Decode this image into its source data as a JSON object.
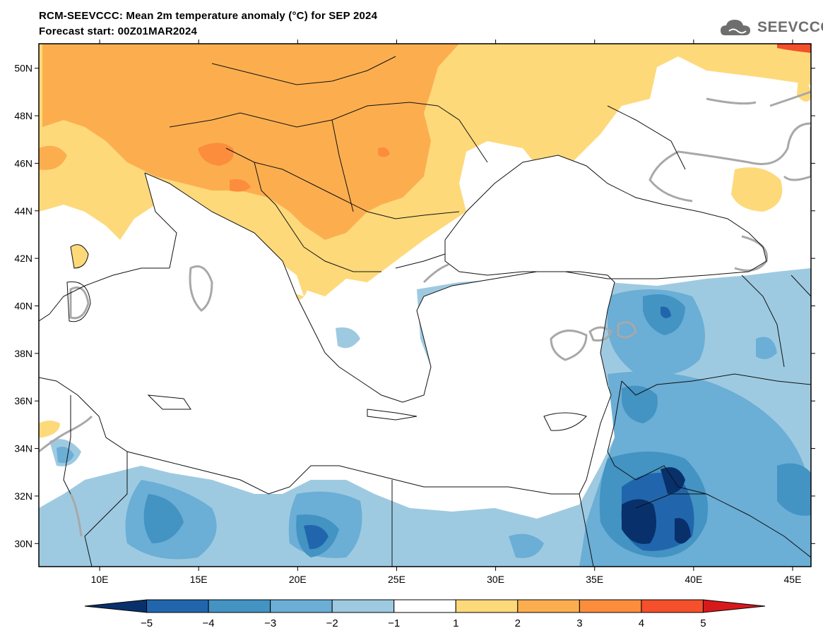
{
  "header": {
    "title_line1": "RCM-SEEVCCC: Mean 2m temperature anomaly (°C) for SEP 2024",
    "title_line2": "Forecast start: 00Z01MAR2024",
    "logo_text": "SEEVCCC",
    "logo_icon": "cloud-icon"
  },
  "map": {
    "lat_ticks": [
      "50N",
      "48N",
      "46N",
      "44N",
      "42N",
      "40N",
      "38N",
      "36N",
      "34N",
      "32N",
      "30N"
    ],
    "lon_ticks": [
      "10E",
      "15E",
      "20E",
      "25E",
      "30E",
      "35E",
      "40E",
      "45E"
    ],
    "lat_range": [
      29,
      51
    ],
    "lon_range": [
      7,
      46
    ]
  },
  "colorbar": {
    "labels": [
      "−5",
      "−4",
      "−3",
      "−2",
      "−1",
      "1",
      "2",
      "3",
      "4",
      "5"
    ],
    "colors": [
      "#08306b",
      "#2166ac",
      "#4393c3",
      "#6baed6",
      "#9ecae1",
      "#ffffff",
      "#fdd97a",
      "#fcae4f",
      "#fc8d3c",
      "#f4502b",
      "#d7191c"
    ]
  }
}
